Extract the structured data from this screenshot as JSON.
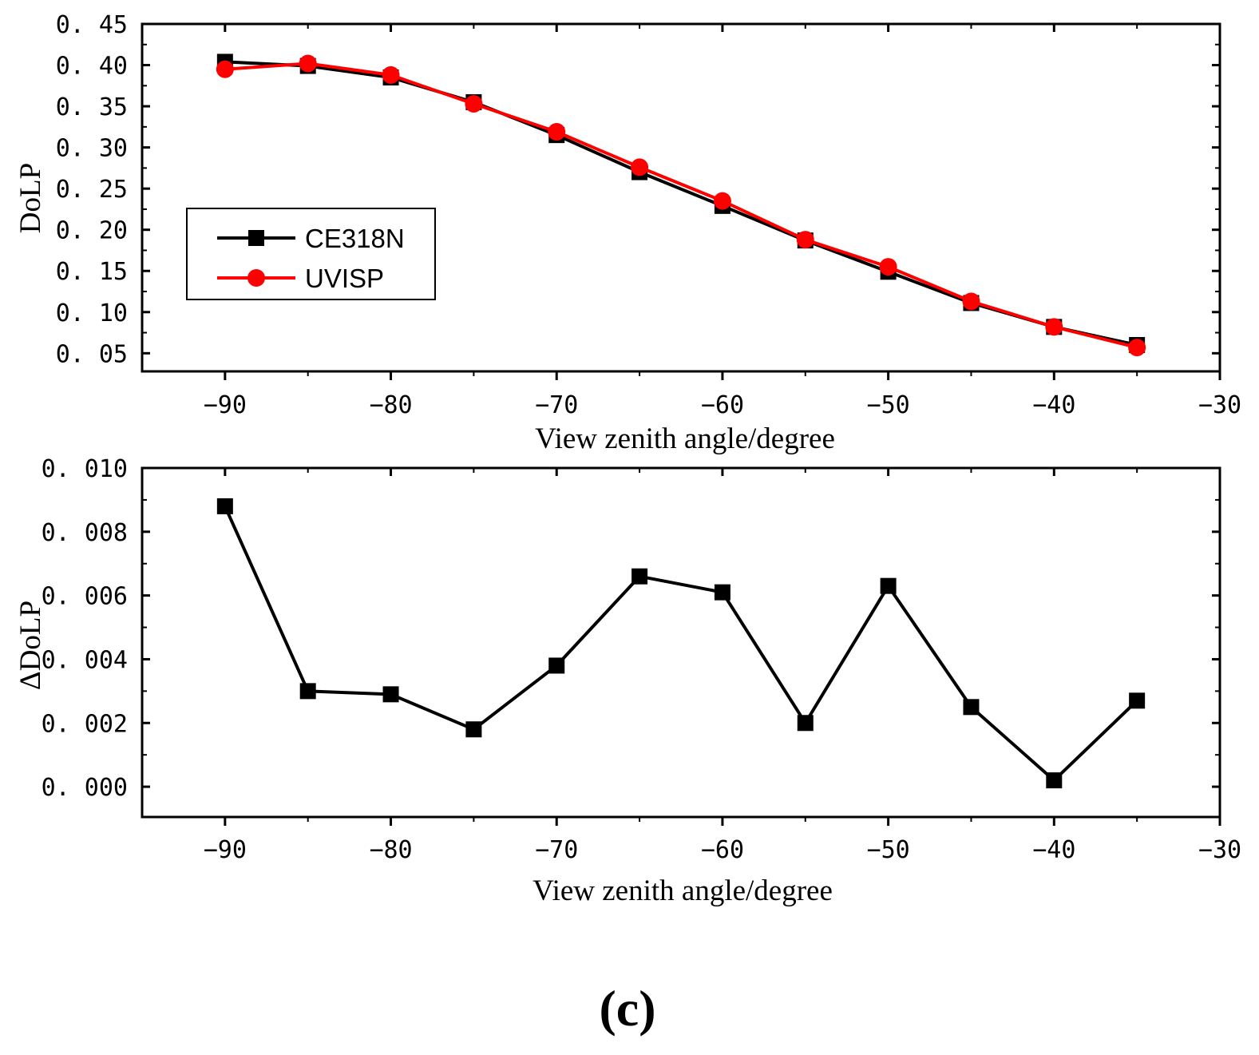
{
  "figure_label": "(c)",
  "chart_data": [
    {
      "type": "line",
      "title": "",
      "xlabel": "View zenith angle/degree",
      "ylabel": "DoLP",
      "xlim": [
        -95,
        -30
      ],
      "ylim": [
        0.028,
        0.45
      ],
      "xticks": [
        -90,
        -80,
        -70,
        -60,
        -50,
        -40,
        -30
      ],
      "xtick_labels": [
        "−90",
        "−80",
        "−70",
        "−60",
        "−50",
        "−40",
        "−30"
      ],
      "yticks": [
        0.05,
        0.1,
        0.15,
        0.2,
        0.25,
        0.3,
        0.35,
        0.4,
        0.45
      ],
      "ytick_labels": [
        "0. 05",
        "0. 10",
        "0. 15",
        "0. 20",
        "0. 25",
        "0. 30",
        "0. 35",
        "0. 40",
        "0. 45"
      ],
      "grid": false,
      "legend_position": "left-middle",
      "x": [
        -90,
        -85,
        -80,
        -75,
        -70,
        -65,
        -60,
        -55,
        -50,
        -45,
        -40,
        -35
      ],
      "series": [
        {
          "name": "CE318N",
          "color": "#000000",
          "marker": "square",
          "values": [
            0.404,
            0.399,
            0.385,
            0.355,
            0.315,
            0.27,
            0.229,
            0.187,
            0.149,
            0.111,
            0.082,
            0.06
          ]
        },
        {
          "name": "UVISP",
          "color": "#ff0000",
          "marker": "circle",
          "values": [
            0.395,
            0.402,
            0.388,
            0.353,
            0.319,
            0.276,
            0.235,
            0.188,
            0.155,
            0.113,
            0.082,
            0.057
          ]
        }
      ]
    },
    {
      "type": "line",
      "title": "",
      "xlabel": "View zenith angle/degree",
      "ylabel": "ΔDoLP",
      "xlim": [
        -95,
        -30
      ],
      "ylim": [
        -0.00095,
        0.01
      ],
      "xticks": [
        -90,
        -80,
        -70,
        -60,
        -50,
        -40,
        -30
      ],
      "xtick_labels": [
        "−90",
        "−80",
        "−70",
        "−60",
        "−50",
        "−40",
        "−30"
      ],
      "yticks": [
        0.0,
        0.002,
        0.004,
        0.006,
        0.008,
        0.01
      ],
      "ytick_labels": [
        "0. 000",
        "0. 002",
        "0. 004",
        "0. 006",
        "0. 008",
        "0. 010"
      ],
      "grid": false,
      "x": [
        -90,
        -85,
        -80,
        -75,
        -70,
        -65,
        -60,
        -55,
        -50,
        -45,
        -40,
        -35
      ],
      "series": [
        {
          "name": "ΔDoLP",
          "color": "#000000",
          "marker": "square",
          "values": [
            0.0088,
            0.003,
            0.0029,
            0.0018,
            0.0038,
            0.0066,
            0.0061,
            0.002,
            0.0063,
            0.0025,
            0.0002,
            0.0027
          ]
        }
      ]
    }
  ]
}
